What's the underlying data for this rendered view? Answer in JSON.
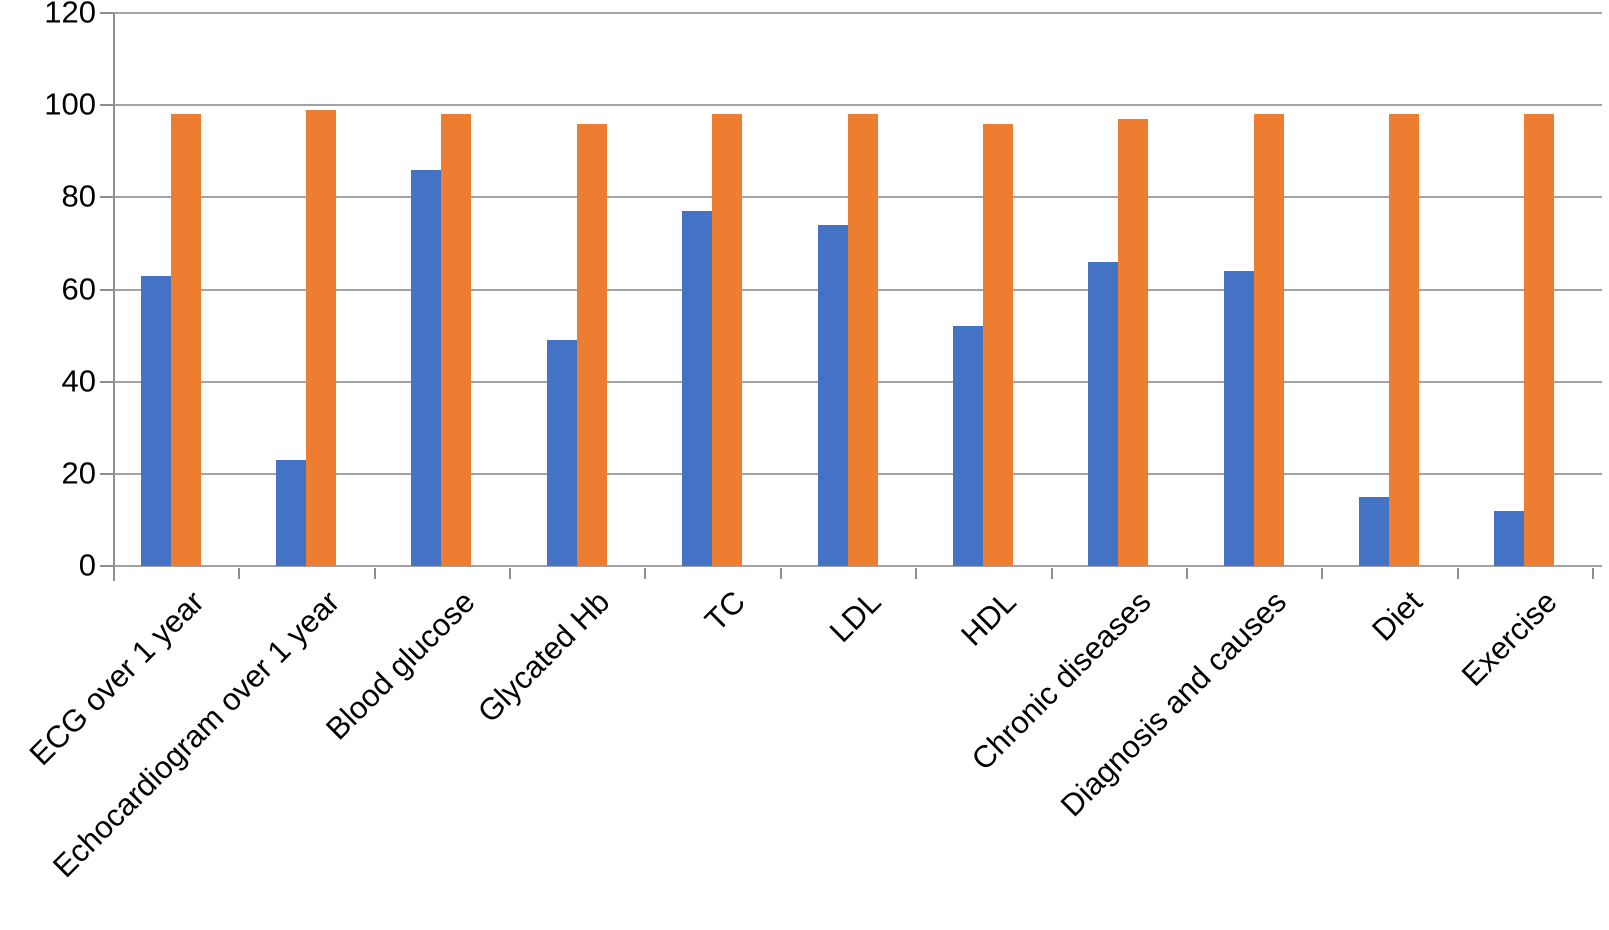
{
  "chart_data": {
    "type": "bar",
    "title": "",
    "xlabel": "",
    "ylabel": "",
    "categories": [
      "ECG over 1 year",
      "Echocardiogram over 1 year",
      "Blood glucose",
      "Glycated Hb",
      "TC",
      "LDL",
      "HDL",
      "Chronic diseases",
      "Diagnosis and causes",
      "Diet",
      "Exercise"
    ],
    "series": [
      {
        "name": "series-1",
        "color": "#4472C4",
        "values": [
          63,
          23,
          86,
          49,
          77,
          74,
          52,
          66,
          64,
          15,
          12
        ]
      },
      {
        "name": "series-2",
        "color": "#ED7D31",
        "values": [
          98,
          99,
          98,
          96,
          98,
          98,
          96,
          97,
          98,
          98,
          98
        ]
      }
    ],
    "ylim": [
      0,
      120
    ],
    "yticks": [
      0,
      20,
      40,
      60,
      80,
      100,
      120
    ],
    "grid": true,
    "legend": "none",
    "grid_color": "#a3a3a3",
    "axis_color": "#8f8f8f",
    "text_color": "#000000"
  }
}
